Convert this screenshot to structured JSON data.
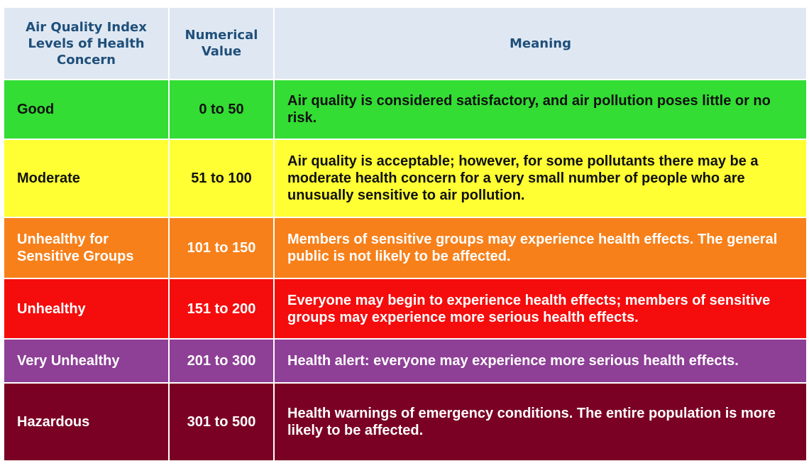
{
  "header": {
    "level": "Air Quality Index Levels of Health Concern",
    "value": "Numerical Value",
    "meaning": "Meaning"
  },
  "rows": [
    {
      "level": "Good",
      "range": "0 to 50",
      "meaning": "Air quality is considered satisfactory, and air pollution poses little or no risk.",
      "bg_color": "#33dd33",
      "text_color": "#111111"
    },
    {
      "level": "Moderate",
      "range": "51 to 100",
      "meaning": "Air quality is acceptable; however, for some pollutants there may be a moderate health concern for a very small number of people who are unusually sensitive to air pollution.",
      "bg_color": "#ffff33",
      "text_color": "#111111"
    },
    {
      "level": "Unhealthy for Sensitive Groups",
      "range": "101 to 150",
      "meaning": "Members of sensitive groups may experience health effects. The general public is not likely to be affected.",
      "bg_color": "#f7801a",
      "text_color": "#ffffff"
    },
    {
      "level": "Unhealthy",
      "range": "151 to 200",
      "meaning": "Everyone may begin to experience health effects; members of sensitive groups may experience more serious health effects.",
      "bg_color": "#f50c0c",
      "text_color": "#ffffff"
    },
    {
      "level": "Very Unhealthy",
      "range": "201 to 300",
      "meaning": "Health alert: everyone may experience more serious health effects.",
      "bg_color": "#8e3f96",
      "text_color": "#ffffff"
    },
    {
      "level": "Hazardous",
      "range": "301 to 500",
      "meaning": "Health warnings of emergency conditions. The entire population is more likely to be affected.",
      "bg_color": "#7a0024",
      "text_color": "#ffffff"
    }
  ]
}
